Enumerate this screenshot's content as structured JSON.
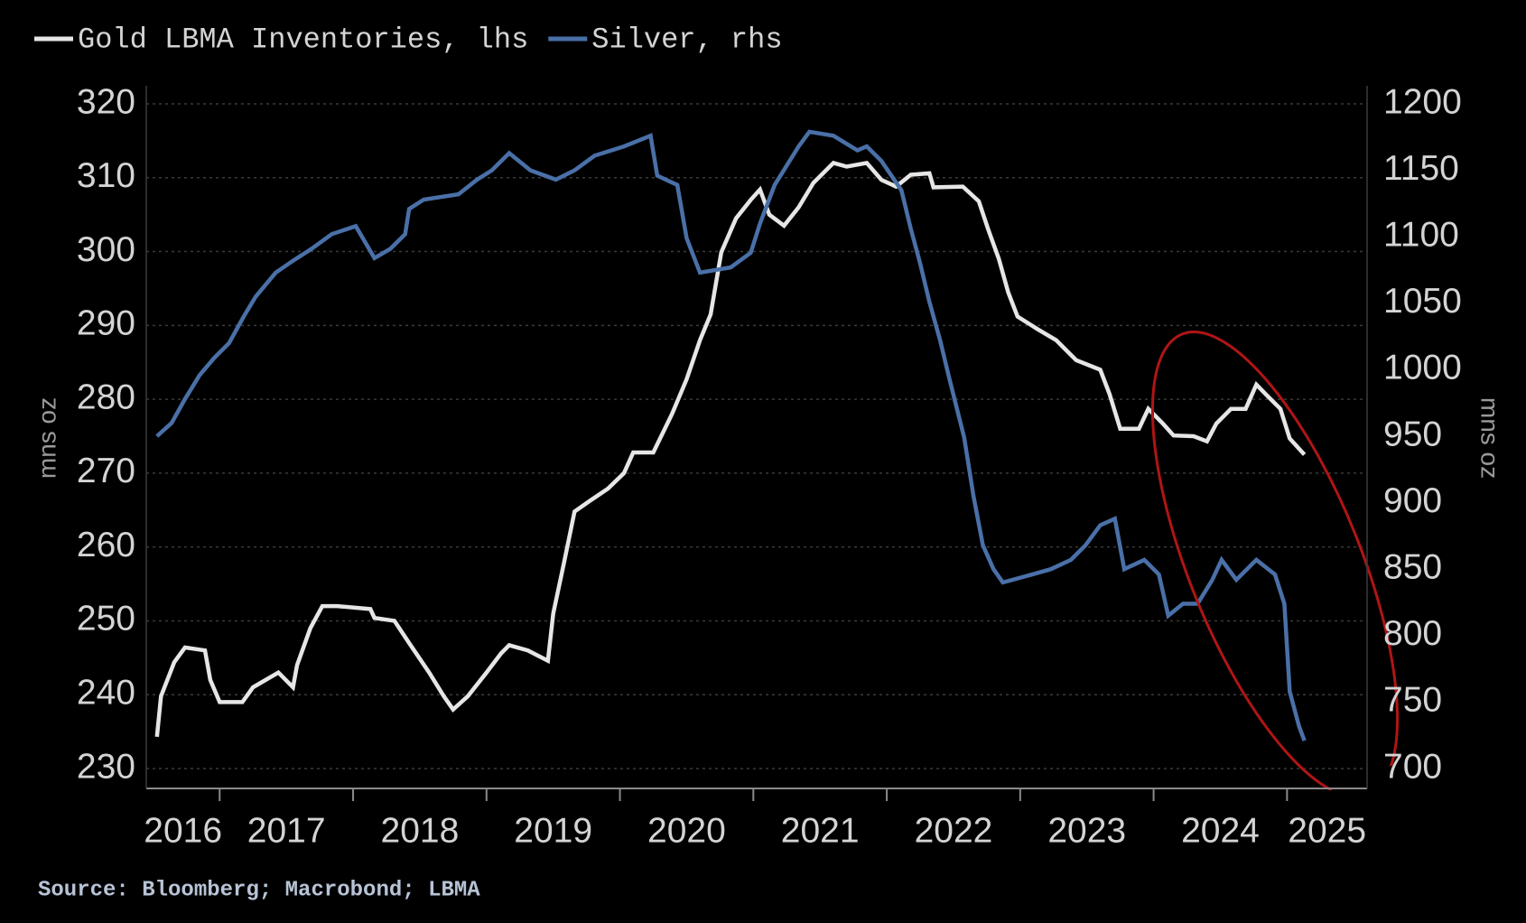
{
  "chart_data": {
    "type": "line",
    "source": "Source: Bloomberg; Macrobond; LBMA",
    "y_label": "mns oz",
    "y2_label": "mns oz",
    "xlim": [
      2016.45,
      2025.6
    ],
    "xticks": [
      2016,
      2017,
      2018,
      2019,
      2020,
      2021,
      2022,
      2023,
      2024,
      2025
    ],
    "ylim": [
      230,
      320
    ],
    "yticks": [
      230,
      240,
      250,
      260,
      270,
      280,
      290,
      300,
      310,
      320
    ],
    "y2lim": [
      700,
      1200
    ],
    "y2ticks": [
      700,
      750,
      800,
      850,
      900,
      950,
      1000,
      1050,
      1100,
      1150,
      1200
    ],
    "grid": true,
    "legend": "top",
    "series": [
      {
        "name": "Gold LBMA Inventories, lhs",
        "color": "#e6e6e6",
        "axis": "y",
        "x": [
          2016.53,
          2016.56,
          2016.66,
          2016.74,
          2016.89,
          2016.93,
          2017.0,
          2017.17,
          2017.25,
          2017.44,
          2017.55,
          2017.58,
          2017.68,
          2017.77,
          2017.88,
          2018.13,
          2018.16,
          2018.31,
          2018.42,
          2018.57,
          2018.68,
          2018.75,
          2018.86,
          2019.0,
          2019.11,
          2019.17,
          2019.31,
          2019.46,
          2019.5,
          2019.58,
          2019.66,
          2019.77,
          2019.91,
          2020.03,
          2020.1,
          2020.25,
          2020.39,
          2020.5,
          2020.6,
          2020.68,
          2020.76,
          2020.87,
          2020.98,
          2021.05,
          2021.12,
          2021.23,
          2021.34,
          2021.45,
          2021.6,
          2021.7,
          2021.85,
          2021.96,
          2022.07,
          2022.18,
          2022.32,
          2022.35,
          2022.57,
          2022.69,
          2022.76,
          2022.84,
          2022.91,
          2022.98,
          2023.13,
          2023.27,
          2023.42,
          2023.6,
          2023.67,
          2023.75,
          2023.89,
          2023.96,
          2024.07,
          2024.15,
          2024.3,
          2024.4,
          2024.47,
          2024.58,
          2024.69,
          2024.77,
          2024.84,
          2024.95,
          2025.02,
          2025.13
        ],
        "values": [
          234.3,
          239.8,
          244.4,
          246.4,
          246,
          242,
          239,
          239,
          241,
          243,
          241,
          244,
          249,
          252,
          252,
          251.6,
          250.4,
          250,
          247,
          243,
          239.8,
          238,
          239.8,
          243,
          245.6,
          246.7,
          246,
          244.6,
          251,
          257.8,
          264.8,
          266.2,
          267.9,
          270,
          272.8,
          272.8,
          278,
          282.7,
          288,
          291.5,
          299.9,
          304.5,
          307,
          308.4,
          305,
          303.5,
          306,
          309.3,
          312,
          311.5,
          312,
          309.7,
          308.8,
          310.4,
          310.6,
          308.7,
          308.8,
          306.8,
          303,
          299,
          294.5,
          291.2,
          289.5,
          288,
          285.3,
          284,
          280.7,
          276,
          276,
          278.7,
          276.7,
          275.1,
          275,
          274.3,
          276.7,
          278.7,
          278.7,
          282,
          280.7,
          278.7,
          274.7,
          272.5
        ]
      },
      {
        "name": "Silver, rhs",
        "color": "#4a70a8",
        "axis": "y2",
        "x": [
          2016.53,
          2016.64,
          2016.74,
          2016.85,
          2016.96,
          2017.07,
          2017.18,
          2017.27,
          2017.42,
          2017.55,
          2017.69,
          2017.84,
          2018.02,
          2018.16,
          2018.28,
          2018.39,
          2018.42,
          2018.53,
          2018.79,
          2018.93,
          2019.04,
          2019.17,
          2019.33,
          2019.52,
          2019.66,
          2019.81,
          2020.03,
          2020.23,
          2020.28,
          2020.43,
          2020.5,
          2020.6,
          2020.83,
          2020.98,
          2021.05,
          2021.16,
          2021.34,
          2021.42,
          2021.6,
          2021.78,
          2021.85,
          2021.96,
          2022.11,
          2022.18,
          2022.25,
          2022.32,
          2022.4,
          2022.47,
          2022.58,
          2022.65,
          2022.72,
          2022.8,
          2022.87,
          2023.09,
          2023.23,
          2023.38,
          2023.49,
          2023.6,
          2023.71,
          2023.78,
          2023.93,
          2024.04,
          2024.11,
          2024.22,
          2024.33,
          2024.44,
          2024.51,
          2024.62,
          2024.77,
          2024.91,
          2024.98,
          2025.02,
          2025.09,
          2025.13
        ],
        "values": [
          950,
          960,
          978,
          996,
          1009,
          1020,
          1040,
          1055,
          1073,
          1082,
          1091,
          1102,
          1108,
          1084,
          1091,
          1102,
          1121,
          1128,
          1132,
          1143,
          1150,
          1163,
          1150,
          1143,
          1150,
          1161,
          1168,
          1176,
          1146,
          1139,
          1099,
          1073,
          1077,
          1088,
          1110,
          1139,
          1168,
          1179,
          1176,
          1165,
          1168,
          1157,
          1135,
          1106,
          1080,
          1051,
          1022,
          993,
          949,
          905,
          868,
          850,
          840,
          846,
          850,
          857,
          868,
          883,
          888,
          850,
          857,
          846,
          815,
          824,
          824,
          842,
          857,
          842,
          857,
          846,
          824,
          758,
          732,
          721
        ]
      }
    ]
  }
}
